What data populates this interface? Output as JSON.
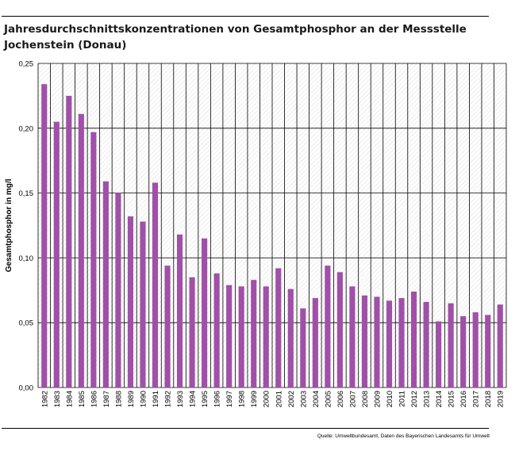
{
  "chart_data": {
    "type": "bar",
    "title": "Jahresdurchschnittskonzentrationen von Gesamtphosphor an der Messstelle Jochenstein (Donau)",
    "xlabel": "",
    "ylabel": "Gesamtphosphor in mg/l",
    "ylim": [
      0,
      0.25
    ],
    "yticks": [
      "0,00",
      "0,05",
      "0,10",
      "0,15",
      "0,20",
      "0,25"
    ],
    "categories": [
      "1982",
      "1983",
      "1984",
      "1985",
      "1986",
      "1987",
      "1988",
      "1989",
      "1990",
      "1991",
      "1992",
      "1993",
      "1994",
      "1995",
      "1996",
      "1997",
      "1998",
      "1999",
      "2000",
      "2001",
      "2002",
      "2003",
      "2004",
      "2005",
      "2006",
      "2007",
      "2008",
      "2009",
      "2010",
      "2011",
      "2012",
      "2013",
      "2014",
      "2015",
      "2016",
      "2017",
      "2018",
      "2019"
    ],
    "values": [
      0.234,
      0.205,
      0.225,
      0.211,
      0.197,
      0.159,
      0.15,
      0.132,
      0.128,
      0.158,
      0.094,
      0.118,
      0.085,
      0.115,
      0.088,
      0.079,
      0.078,
      0.083,
      0.078,
      0.092,
      0.076,
      0.061,
      0.069,
      0.094,
      0.089,
      0.078,
      0.071,
      0.07,
      0.067,
      0.069,
      0.074,
      0.066,
      0.051,
      0.065,
      0.055,
      0.058,
      0.056,
      0.064
    ],
    "grid": true,
    "legend": "none",
    "colors": {
      "bar": "#a050a8",
      "grid": "#000000",
      "background": "#ffffff"
    }
  },
  "source": "Quelle: Umweltbundesamt, Daten des Bayerischen Landesamts für Umwelt"
}
